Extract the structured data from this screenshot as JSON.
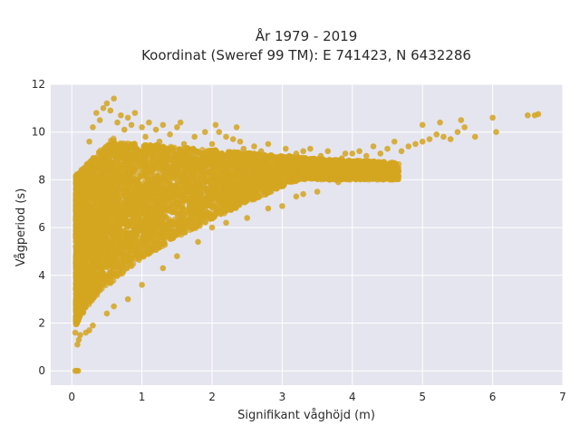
{
  "chart_data": {
    "type": "scatter",
    "title_line1": "År 1979 - 2019",
    "title_line2": "Koordinat (Sweref 99 TM): E 741423, N 6432286",
    "xlabel": "Signifikant våghöjd (m)",
    "ylabel": "Vågperiod (s)",
    "xlim": [
      -0.3,
      7.0
    ],
    "ylim": [
      -0.6,
      12.0
    ],
    "xticks": [
      0,
      1,
      2,
      3,
      4,
      5,
      6,
      7
    ],
    "yticks": [
      0,
      2,
      4,
      6,
      8,
      10,
      12
    ],
    "grid": true,
    "legend": "none",
    "colors": {
      "marker": "#d4a520",
      "plot_bg": "#e5e5ef",
      "grid": "#ffffff"
    },
    "points": [
      [
        0.05,
        0.0
      ],
      [
        0.07,
        0.0
      ],
      [
        0.09,
        0.0
      ],
      [
        0.08,
        1.1
      ],
      [
        0.1,
        1.3
      ],
      [
        0.12,
        1.5
      ],
      [
        0.05,
        1.6
      ],
      [
        0.15,
        4.4
      ],
      [
        0.25,
        9.6
      ],
      [
        0.3,
        10.2
      ],
      [
        0.35,
        10.8
      ],
      [
        0.4,
        10.5
      ],
      [
        0.45,
        11.0
      ],
      [
        0.5,
        11.2
      ],
      [
        0.55,
        10.9
      ],
      [
        0.6,
        11.4
      ],
      [
        0.65,
        10.4
      ],
      [
        0.7,
        10.7
      ],
      [
        0.75,
        10.1
      ],
      [
        0.8,
        10.6
      ],
      [
        0.85,
        10.3
      ],
      [
        0.9,
        10.8
      ],
      [
        1.0,
        10.2
      ],
      [
        1.05,
        9.8
      ],
      [
        1.1,
        10.4
      ],
      [
        1.2,
        10.1
      ],
      [
        1.25,
        9.6
      ],
      [
        1.3,
        10.3
      ],
      [
        1.4,
        9.9
      ],
      [
        1.5,
        10.2
      ],
      [
        1.55,
        10.4
      ],
      [
        1.6,
        9.5
      ],
      [
        1.75,
        9.8
      ],
      [
        1.9,
        10.0
      ],
      [
        2.0,
        9.5
      ],
      [
        2.05,
        10.3
      ],
      [
        2.1,
        10.0
      ],
      [
        2.2,
        9.8
      ],
      [
        2.3,
        9.7
      ],
      [
        2.35,
        10.2
      ],
      [
        2.4,
        9.6
      ],
      [
        2.45,
        9.3
      ],
      [
        2.6,
        9.4
      ],
      [
        2.7,
        9.2
      ],
      [
        2.8,
        9.5
      ],
      [
        2.85,
        8.3
      ],
      [
        2.95,
        8.5
      ],
      [
        3.05,
        9.3
      ],
      [
        3.1,
        9.0
      ],
      [
        3.2,
        9.1
      ],
      [
        3.3,
        9.2
      ],
      [
        3.4,
        9.3
      ],
      [
        3.45,
        8.7
      ],
      [
        3.55,
        9.0
      ],
      [
        3.65,
        9.2
      ],
      [
        3.75,
        8.8
      ],
      [
        3.85,
        8.9
      ],
      [
        3.9,
        9.1
      ],
      [
        4.0,
        9.1
      ],
      [
        4.1,
        9.2
      ],
      [
        4.2,
        9.0
      ],
      [
        4.3,
        9.4
      ],
      [
        4.4,
        9.1
      ],
      [
        4.5,
        9.3
      ],
      [
        4.6,
        9.6
      ],
      [
        4.7,
        9.2
      ],
      [
        4.8,
        9.4
      ],
      [
        4.9,
        9.5
      ],
      [
        5.0,
        9.6
      ],
      [
        5.1,
        9.7
      ],
      [
        5.2,
        9.9
      ],
      [
        5.3,
        9.8
      ],
      [
        5.4,
        9.7
      ],
      [
        5.5,
        10.0
      ],
      [
        5.6,
        10.2
      ],
      [
        5.75,
        9.8
      ],
      [
        5.0,
        10.3
      ],
      [
        5.25,
        10.4
      ],
      [
        5.55,
        10.5
      ],
      [
        6.0,
        10.6
      ],
      [
        6.05,
        10.0
      ],
      [
        6.5,
        10.7
      ],
      [
        6.6,
        10.7
      ],
      [
        6.65,
        10.75
      ],
      [
        4.6,
        8.7
      ],
      [
        4.4,
        8.6
      ],
      [
        3.5,
        7.5
      ],
      [
        3.2,
        7.3
      ],
      [
        2.5,
        6.4
      ],
      [
        2.8,
        6.8
      ],
      [
        2.0,
        6.0
      ],
      [
        1.5,
        4.8
      ],
      [
        1.8,
        5.4
      ],
      [
        1.0,
        3.6
      ],
      [
        0.8,
        3.0
      ],
      [
        0.5,
        2.4
      ],
      [
        0.3,
        1.9
      ],
      [
        0.2,
        1.6
      ],
      [
        0.25,
        1.7
      ],
      [
        0.6,
        2.7
      ],
      [
        1.3,
        4.3
      ],
      [
        2.2,
        6.2
      ],
      [
        3.0,
        6.9
      ],
      [
        3.3,
        7.4
      ],
      [
        3.8,
        7.9
      ],
      [
        4.2,
        8.4
      ]
    ]
  }
}
